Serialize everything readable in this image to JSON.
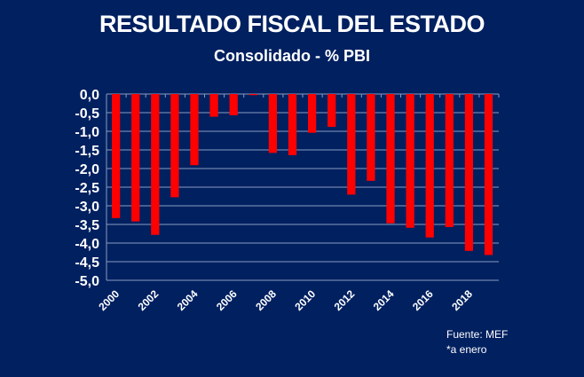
{
  "chart_data": {
    "type": "bar",
    "title": "RESULTADO FISCAL  DEL ESTADO",
    "subtitle": "Consolidado - % PBI",
    "categories": [
      "2000",
      "2001",
      "2002",
      "2003",
      "2004",
      "2005",
      "2006",
      "2007",
      "2008",
      "2009",
      "2010",
      "2011",
      "2012",
      "2013",
      "2014",
      "2015",
      "2016",
      "2017",
      "2018",
      "2019"
    ],
    "tick_labels": [
      "2000",
      "2002",
      "2004",
      "2006",
      "2008",
      "2010",
      "2012",
      "2014",
      "2016",
      "2018"
    ],
    "values": [
      -3.33,
      -3.42,
      -3.78,
      -2.77,
      -1.91,
      -0.61,
      -0.57,
      -0.03,
      -1.58,
      -1.64,
      -1.04,
      -0.88,
      -2.7,
      -2.33,
      -3.47,
      -3.59,
      -3.85,
      -3.57,
      -4.21,
      -4.32
    ],
    "ylim": [
      -5.0,
      0.0
    ],
    "yticks": [
      "0,0",
      "-0,5",
      "-1,0",
      "-1,5",
      "-2,0",
      "-2,5",
      "-3,0",
      "-3,5",
      "-4,0",
      "-4,5",
      "-5,0"
    ],
    "grid": true,
    "bar_color": "#ff0000",
    "background": "#002060"
  },
  "notes": {
    "source": "Fuente: MEF",
    "footnote": "*a enero"
  }
}
